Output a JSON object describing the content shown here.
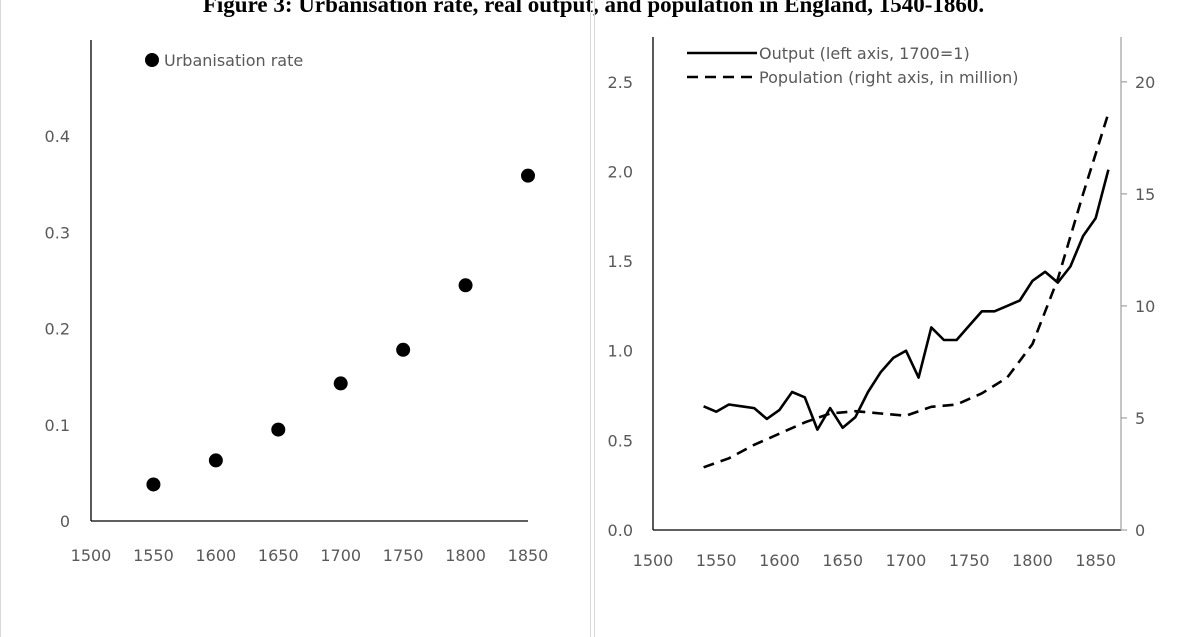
{
  "title": "Figure 3: Urbanisation rate, real output, and population in England, 1540-1860.",
  "chart_data": [
    {
      "type": "scatter",
      "series": [
        {
          "name": "Urbanisation rate",
          "x": [
            1550,
            1600,
            1650,
            1700,
            1750,
            1800,
            1850
          ],
          "y": [
            0.038,
            0.063,
            0.095,
            0.143,
            0.178,
            0.245,
            0.359
          ]
        }
      ],
      "xlim": [
        1500,
        1850
      ],
      "xticks": [
        "1500",
        "1550",
        "1600",
        "1650",
        "1700",
        "1750",
        "1800",
        "1850"
      ],
      "ylim": [
        0,
        0.5
      ],
      "yticks": [
        "0",
        "0.1",
        "0.2",
        "0.3",
        "0.4"
      ],
      "legend": "top-left",
      "grid": false
    },
    {
      "type": "line",
      "series": [
        {
          "name": "Output (left axis, 1700=1)",
          "axis": "left",
          "style": "solid",
          "x": [
            1540,
            1550,
            1560,
            1570,
            1580,
            1590,
            1600,
            1610,
            1620,
            1630,
            1640,
            1650,
            1660,
            1670,
            1680,
            1690,
            1700,
            1710,
            1720,
            1730,
            1740,
            1750,
            1760,
            1770,
            1780,
            1790,
            1800,
            1810,
            1820,
            1830,
            1840,
            1850,
            1860
          ],
          "y": [
            0.69,
            0.66,
            0.7,
            0.69,
            0.68,
            0.62,
            0.67,
            0.77,
            0.74,
            0.56,
            0.68,
            0.57,
            0.63,
            0.77,
            0.88,
            0.96,
            1.0,
            0.85,
            1.13,
            1.06,
            1.06,
            1.14,
            1.22,
            1.22,
            1.25,
            1.28,
            1.39,
            1.44,
            1.38,
            1.47,
            1.64,
            1.74,
            2.01
          ]
        },
        {
          "name": "Population (right axis, in million)",
          "axis": "right",
          "style": "dashed",
          "x": [
            1540,
            1560,
            1580,
            1600,
            1620,
            1640,
            1660,
            1680,
            1700,
            1720,
            1740,
            1760,
            1780,
            1800,
            1820,
            1840,
            1860
          ],
          "y": [
            2.8,
            3.2,
            3.8,
            4.3,
            4.8,
            5.2,
            5.3,
            5.2,
            5.1,
            5.5,
            5.6,
            6.1,
            6.8,
            8.3,
            11.2,
            15.0,
            18.6
          ]
        }
      ],
      "xlim": [
        1500,
        1870
      ],
      "xticks": [
        "1500",
        "1550",
        "1600",
        "1650",
        "1700",
        "1750",
        "1800",
        "1850"
      ],
      "ylim_left": [
        0,
        2.75
      ],
      "yticks_left": [
        "0.0",
        "0.5",
        "1.0",
        "1.5",
        "2.0",
        "2.5"
      ],
      "ylim_right": [
        0,
        22
      ],
      "yticks_right": [
        "0",
        "5",
        "10",
        "15",
        "20"
      ],
      "legend": "top-left",
      "grid": false
    }
  ]
}
